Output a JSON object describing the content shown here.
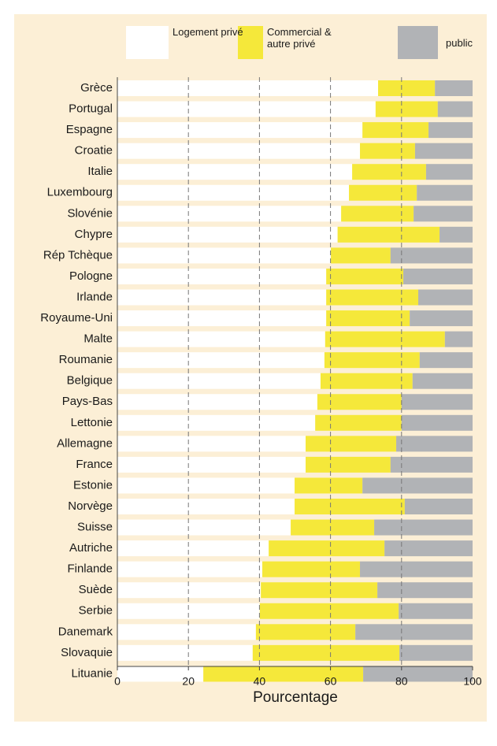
{
  "chart_data": {
    "type": "stacked-bar-horizontal",
    "x_label": "Pourcentage",
    "categories": [
      "Grèce",
      "Portugal",
      "Espagne",
      "Croatie",
      "Italie",
      "Luxembourg",
      "Slovénie",
      "Chypre",
      "Rép Tchèque",
      "Pologne",
      "Irlande",
      "Royaume-Uni",
      "Malte",
      "Roumanie",
      "Belgique",
      "Pays-Bas",
      "Lettonie",
      "Allemagne",
      "France",
      "Estonie",
      "Norvège",
      "Suisse",
      "Autriche",
      "Finlande",
      "Suède",
      "Serbie",
      "Danemark",
      "Slovaquie",
      "Lituanie"
    ],
    "series": [
      {
        "name": "Logement privé",
        "color": "#ffffff",
        "values": [
          73.4,
          72.7,
          69,
          68.3,
          66.1,
          65.2,
          63,
          62,
          60.1,
          58.8,
          58.8,
          58.8,
          58.5,
          58.3,
          57.2,
          56.3,
          55.7,
          53,
          53,
          49.9,
          49.9,
          48.8,
          42.6,
          40.8,
          40.4,
          40.1,
          39,
          38.1,
          24.2
        ]
      },
      {
        "name": "Commercial & autre privé",
        "color": "#f5e83a",
        "values": [
          16,
          17.5,
          18.6,
          15.5,
          20.8,
          19.1,
          20.4,
          28.7,
          16.8,
          21.7,
          25.9,
          23.5,
          33.7,
          26.8,
          25.9,
          23.7,
          24.3,
          25.5,
          23.9,
          19.1,
          31,
          23.5,
          32.6,
          27.5,
          32.8,
          39.1,
          28,
          41.3,
          45
        ]
      },
      {
        "name": "public",
        "color": "#b1b3b6",
        "values": [
          10.6,
          9.8,
          12.4,
          16.2,
          13.1,
          15.7,
          16.6,
          9.3,
          23.1,
          19.5,
          15.3,
          17.7,
          7.8,
          14.9,
          16.9,
          20,
          20,
          21.5,
          23.1,
          31,
          19.1,
          27.7,
          24.8,
          31.7,
          26.8,
          20.8,
          33,
          20.6,
          30.8
        ]
      }
    ],
    "xlim": [
      0,
      100
    ],
    "xticks": [
      0,
      20,
      40,
      60,
      80,
      100
    ],
    "grid": true,
    "background": "#fcefd6"
  }
}
